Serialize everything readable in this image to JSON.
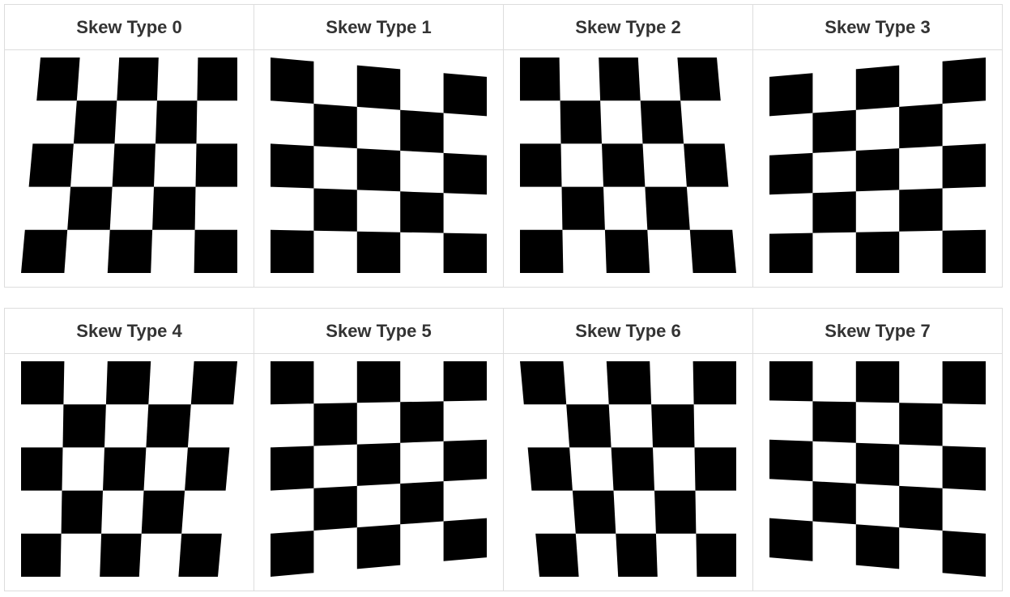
{
  "colors": {
    "square": "#000000",
    "background": "#ffffff",
    "border": "#dddddd",
    "header_text": "#333333"
  },
  "grid": {
    "rows": 5,
    "cols": 5
  },
  "rows": [
    {
      "cells": [
        {
          "label": "Skew Type 0",
          "skew": "left-top-in",
          "icon": "checkerboard-skewed"
        },
        {
          "label": "Skew Type 1",
          "skew": "right-top-down",
          "icon": "checkerboard-skewed"
        },
        {
          "label": "Skew Type 2",
          "skew": "right-top-in",
          "icon": "checkerboard-skewed"
        },
        {
          "label": "Skew Type 3",
          "skew": "left-top-down",
          "icon": "checkerboard-skewed"
        }
      ]
    },
    {
      "cells": [
        {
          "label": "Skew Type 4",
          "skew": "right-bottom-in",
          "icon": "checkerboard-skewed"
        },
        {
          "label": "Skew Type 5",
          "skew": "right-bottom-up",
          "icon": "checkerboard-skewed"
        },
        {
          "label": "Skew Type 6",
          "skew": "left-bottom-in",
          "icon": "checkerboard-skewed"
        },
        {
          "label": "Skew Type 7",
          "skew": "left-bottom-up",
          "icon": "checkerboard-skewed"
        }
      ]
    }
  ]
}
